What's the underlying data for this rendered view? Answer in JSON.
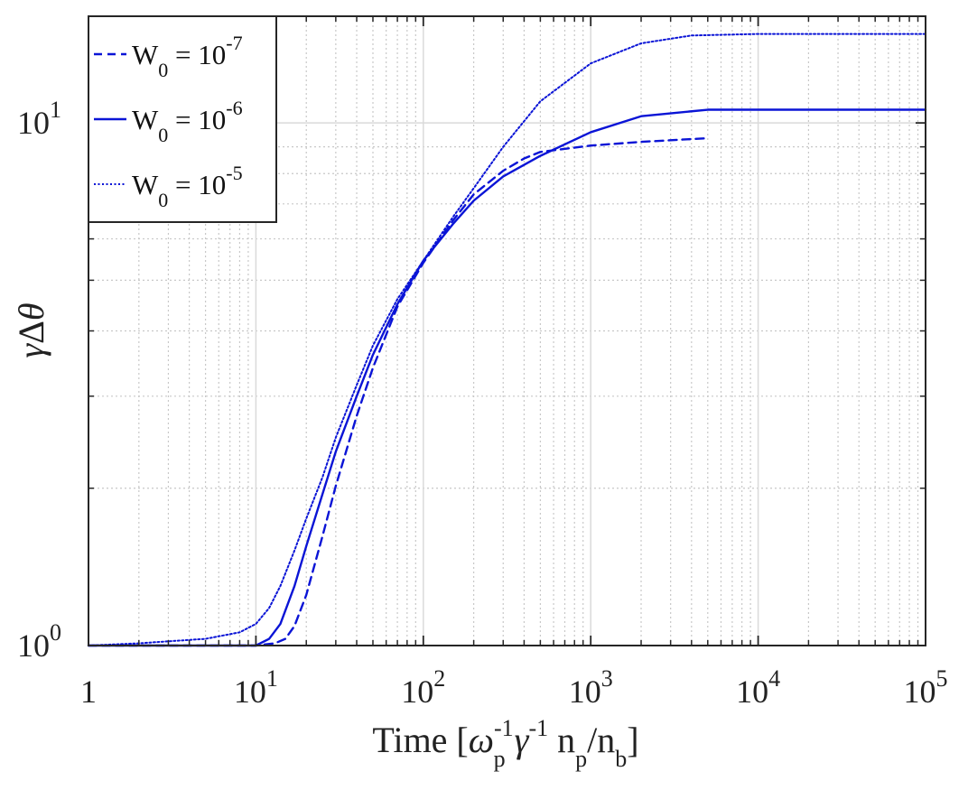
{
  "chart_data": {
    "type": "line",
    "title": "",
    "xscale": "log",
    "yscale": "log",
    "xlim": [
      1,
      100000
    ],
    "ylim": [
      1,
      16
    ],
    "grid": true,
    "minor_grid": true,
    "legend_position": "top-left",
    "xlabel": {
      "main": "Time [",
      "omega": "ω",
      "omega_sub": "p",
      "omega_sup": "-1",
      "gamma": "γ",
      "gamma_sup": "-1",
      "n1": "n",
      "n1_sub": "p",
      "slash": "/n",
      "n2_sub": "b",
      "close": "]"
    },
    "ylabel": {
      "gamma": "γ",
      "delta": "Δ",
      "theta": "θ"
    },
    "x_ticks": [
      {
        "value": 1,
        "base": "1",
        "exp": ""
      },
      {
        "value": 10,
        "base": "10",
        "exp": "1"
      },
      {
        "value": 100,
        "base": "10",
        "exp": "2"
      },
      {
        "value": 1000,
        "base": "10",
        "exp": "3"
      },
      {
        "value": 10000,
        "base": "10",
        "exp": "4"
      },
      {
        "value": 100000,
        "base": "10",
        "exp": "5"
      }
    ],
    "y_ticks": [
      {
        "value": 1,
        "base": "10",
        "exp": "0"
      },
      {
        "value": 10,
        "base": "10",
        "exp": "1"
      }
    ],
    "series": [
      {
        "label_base": "W",
        "label_sub": "0",
        "label_eq": " = 10",
        "label_exp": "-7",
        "color": "#0a14d6",
        "dash": "dashed",
        "x": [
          1,
          5,
          10,
          13,
          15,
          17,
          20,
          25,
          30,
          40,
          50,
          70,
          100,
          150,
          200,
          300,
          400,
          500,
          1000,
          2000,
          5000
        ],
        "y": [
          1.0,
          1.0,
          1.0,
          1.01,
          1.03,
          1.09,
          1.25,
          1.62,
          2.02,
          2.75,
          3.4,
          4.45,
          5.4,
          6.5,
          7.3,
          8.1,
          8.55,
          8.8,
          9.05,
          9.2,
          9.35
        ]
      },
      {
        "label_base": "W",
        "label_sub": "0",
        "label_eq": " = 10",
        "label_exp": "-6",
        "color": "#0a14d6",
        "dash": "solid",
        "x": [
          1,
          5,
          9,
          10,
          12,
          14,
          17,
          20,
          25,
          30,
          40,
          50,
          70,
          100,
          150,
          200,
          300,
          500,
          1000,
          2000,
          5000,
          100000
        ],
        "y": [
          1.0,
          1.0,
          1.0,
          1.0,
          1.03,
          1.1,
          1.3,
          1.55,
          1.95,
          2.35,
          3.0,
          3.6,
          4.5,
          5.45,
          6.4,
          7.1,
          7.9,
          8.65,
          9.6,
          10.3,
          10.6,
          10.6
        ]
      },
      {
        "label_base": "W",
        "label_sub": "0",
        "label_eq": " = 10",
        "label_exp": "-5",
        "color": "#0a14d6",
        "dash": "dotted",
        "x": [
          1,
          2,
          5,
          8,
          10,
          12,
          14,
          17,
          20,
          25,
          30,
          40,
          50,
          70,
          100,
          150,
          200,
          300,
          500,
          1000,
          2000,
          4000,
          10000,
          100000
        ],
        "y": [
          1.0,
          1.01,
          1.03,
          1.06,
          1.1,
          1.18,
          1.3,
          1.52,
          1.75,
          2.1,
          2.5,
          3.15,
          3.75,
          4.6,
          5.45,
          6.6,
          7.5,
          9.0,
          11.0,
          13.0,
          14.2,
          14.7,
          14.8,
          14.8
        ]
      }
    ]
  }
}
